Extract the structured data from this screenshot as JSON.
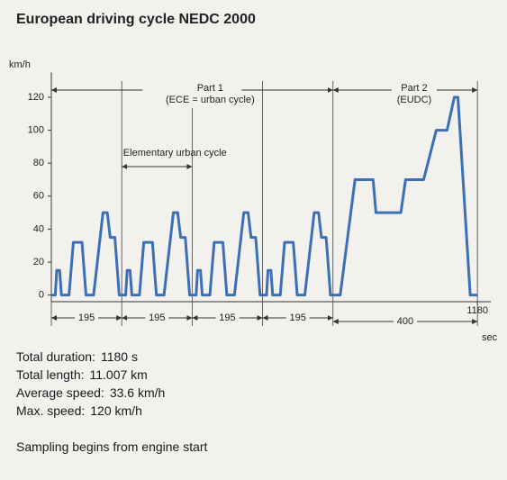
{
  "chart_data": {
    "type": "line",
    "title": "European driving cycle NEDC 2000",
    "y_label": "km/h",
    "x_label": "sec",
    "x": [
      0,
      11,
      15,
      23,
      28,
      49,
      61,
      85,
      96,
      117,
      143,
      155,
      163,
      176,
      188,
      195,
      206,
      210,
      218,
      223,
      244,
      256,
      280,
      291,
      312,
      338,
      350,
      358,
      371,
      383,
      390,
      401,
      405,
      413,
      418,
      439,
      451,
      475,
      486,
      507,
      533,
      545,
      553,
      566,
      578,
      585,
      596,
      600,
      608,
      613,
      634,
      646,
      670,
      681,
      702,
      728,
      740,
      748,
      761,
      773,
      780,
      800,
      841,
      891,
      899,
      968,
      981,
      1031,
      1066,
      1096,
      1116,
      1126,
      1160,
      1180
    ],
    "values": [
      0,
      0,
      15,
      15,
      0,
      0,
      32,
      32,
      0,
      0,
      50,
      50,
      35,
      35,
      0,
      0,
      0,
      15,
      15,
      0,
      0,
      32,
      32,
      0,
      0,
      50,
      50,
      35,
      35,
      0,
      0,
      0,
      15,
      15,
      0,
      0,
      32,
      32,
      0,
      0,
      50,
      50,
      35,
      35,
      0,
      0,
      0,
      15,
      15,
      0,
      0,
      32,
      32,
      0,
      0,
      50,
      50,
      35,
      35,
      0,
      0,
      0,
      70,
      70,
      50,
      50,
      70,
      70,
      100,
      100,
      120,
      120,
      0,
      0
    ],
    "color": "#3b6fb6",
    "xlim": [
      0,
      1217
    ],
    "ylim": [
      -4,
      135
    ],
    "xticks": [
      1180
    ],
    "yticks": [
      0,
      20,
      40,
      60,
      80,
      100,
      120
    ],
    "grid": false,
    "segment_durations": [
      195,
      195,
      195,
      195,
      400
    ],
    "annotations": {
      "part1": "Part 1",
      "part1_note": "(ECE = urban cycle)",
      "part2": "Part 2",
      "part2_note": "(EUDC)",
      "elementary": "Elementary urban cycle"
    }
  },
  "summary": [
    {
      "label": "Total duration:",
      "value": "1180 s"
    },
    {
      "label": "Total length:",
      "value": "11.007 km"
    },
    {
      "label": "Average speed:",
      "value": "33.6 km/h"
    },
    {
      "label": "Max. speed:",
      "value": "120 km/h"
    }
  ],
  "note": "Sampling begins from engine start"
}
